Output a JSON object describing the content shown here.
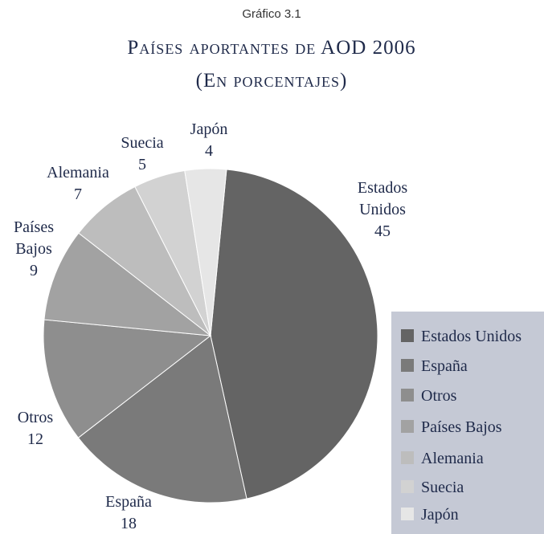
{
  "chart_data": {
    "type": "pie",
    "supertitle": "Gráfico 3.1",
    "title": "Países aportantes de AOD 2006",
    "subtitle": "(En porcentajes)",
    "categories": [
      "Estados Unidos",
      "España",
      "Otros",
      "Países Bajos",
      "Alemania",
      "Suecia",
      "Japón"
    ],
    "values": [
      45,
      18,
      12,
      9,
      7,
      5,
      4
    ],
    "colors": [
      "#646464",
      "#7a7a7a",
      "#8e8e8e",
      "#a2a2a2",
      "#bdbdbd",
      "#d2d2d2",
      "#e6e6e6"
    ],
    "legend": "lower right"
  }
}
